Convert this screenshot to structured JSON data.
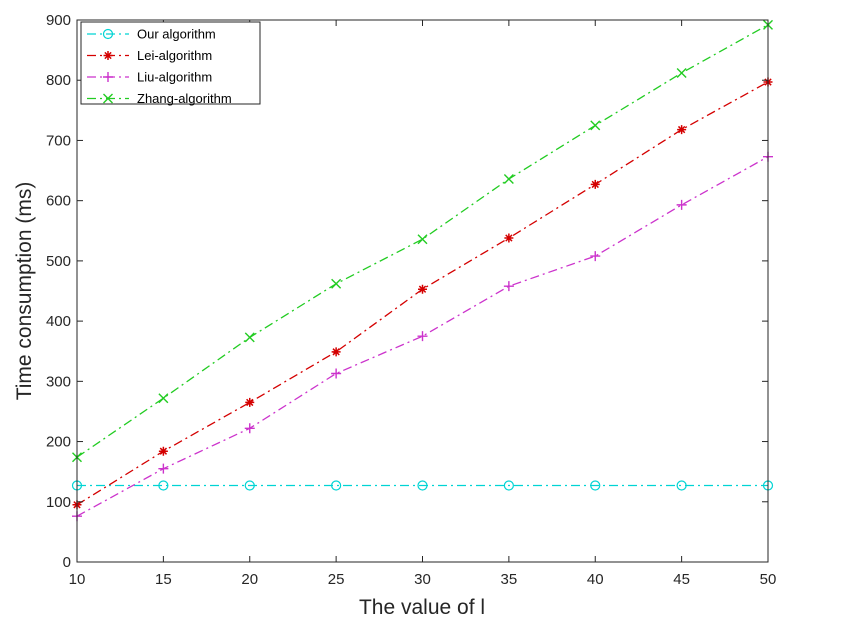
{
  "chart_data": {
    "type": "line",
    "xlabel": "The value of l",
    "ylabel": "Time consumption (ms)",
    "xlim": [
      10,
      50
    ],
    "ylim": [
      0,
      900
    ],
    "xticks": [
      10,
      15,
      20,
      25,
      30,
      35,
      40,
      45,
      50
    ],
    "yticks": [
      0,
      100,
      200,
      300,
      400,
      500,
      600,
      700,
      800,
      900
    ],
    "grid": false,
    "legend_position": "top-left",
    "x": [
      10,
      15,
      20,
      25,
      30,
      35,
      40,
      45,
      50
    ],
    "series": [
      {
        "name": "Our algorithm",
        "color": "#00d4d4",
        "marker": "circle",
        "line_style": "dash-dot",
        "values": [
          127,
          127,
          127,
          127,
          127,
          127,
          127,
          127,
          127
        ]
      },
      {
        "name": "Lei-algorithm",
        "color": "#d40000",
        "marker": "asterisk",
        "line_style": "dash-dot",
        "values": [
          95,
          184,
          265,
          349,
          453,
          538,
          627,
          718,
          797
        ]
      },
      {
        "name": "Liu-algorithm",
        "color": "#cc33cc",
        "marker": "plus",
        "line_style": "dash-dot",
        "values": [
          76,
          155,
          222,
          313,
          375,
          458,
          508,
          593,
          673
        ]
      },
      {
        "name": "Zhang-algorithm",
        "color": "#22cc22",
        "marker": "cross",
        "line_style": "dash-dot",
        "values": [
          174,
          272,
          373,
          462,
          536,
          636,
          725,
          812,
          892
        ]
      }
    ]
  }
}
